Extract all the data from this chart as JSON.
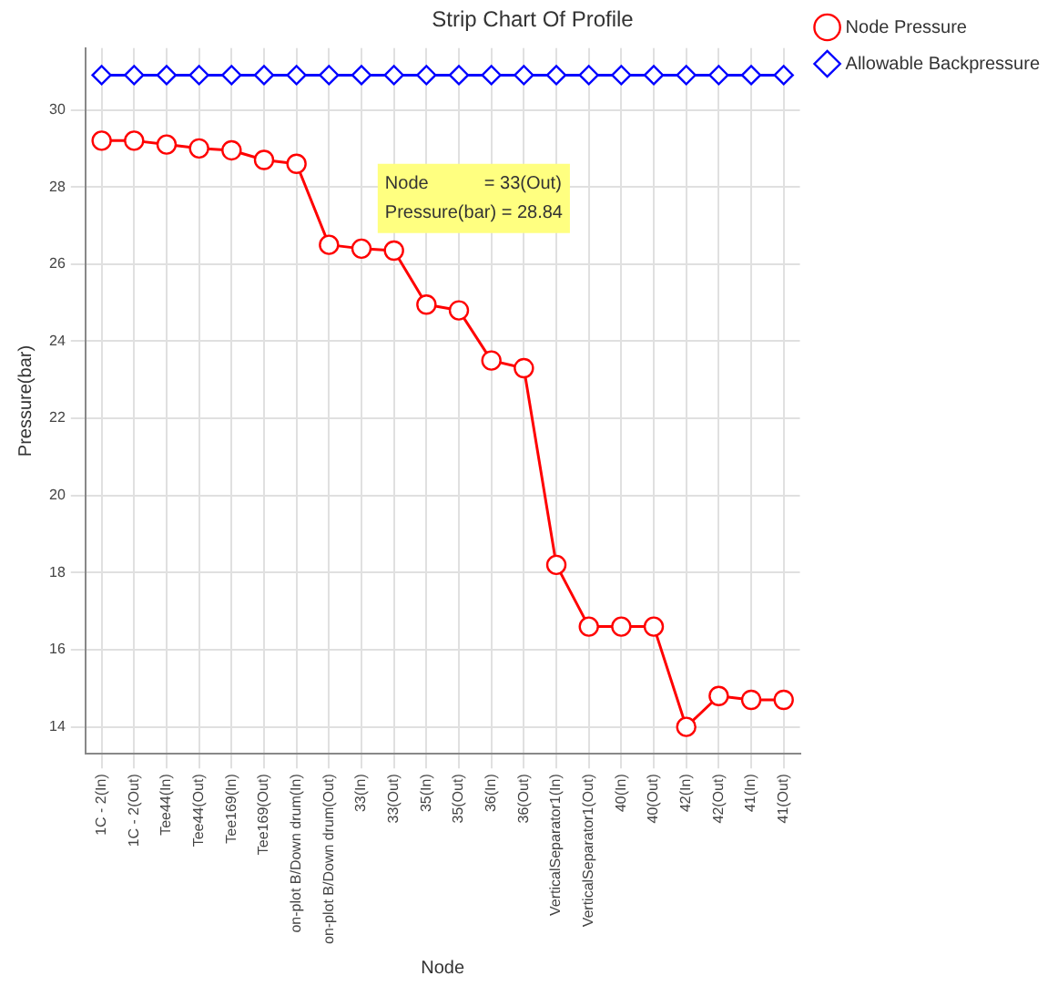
{
  "chart_data": {
    "type": "line",
    "title": "Strip Chart Of Profile",
    "xlabel": "Node",
    "ylabel": "Pressure(bar)",
    "categories": [
      "1C - 2(In)",
      "1C - 2(Out)",
      "Tee44(In)",
      "Tee44(Out)",
      "Tee169(In)",
      "Tee169(Out)",
      "on-plot B/Down drum(In)",
      "on-plot B/Down drum(Out)",
      "33(In)",
      "33(Out)",
      "35(In)",
      "35(Out)",
      "36(In)",
      "36(Out)",
      "VerticalSeparator1(In)",
      "VerticalSeparator1(Out)",
      "40(In)",
      "40(Out)",
      "42(In)",
      "42(Out)",
      "41(In)",
      "41(Out)"
    ],
    "series": [
      {
        "name": "Node Pressure",
        "color": "#ff0000",
        "marker": "circle",
        "values": [
          29.2,
          29.2,
          29.1,
          29.0,
          28.95,
          28.7,
          28.6,
          26.5,
          26.4,
          26.35,
          24.95,
          24.8,
          23.5,
          23.3,
          18.2,
          16.6,
          16.6,
          16.6,
          14.0,
          14.8,
          14.7,
          14.7
        ]
      },
      {
        "name": "Allowable Backpressure",
        "color": "#0000ff",
        "marker": "diamond",
        "values": [
          30.9,
          30.9,
          30.9,
          30.9,
          30.9,
          30.9,
          30.9,
          30.9,
          30.9,
          30.9,
          30.9,
          30.9,
          30.9,
          30.9,
          30.9,
          30.9,
          30.9,
          30.9,
          30.9,
          30.9,
          30.9,
          30.9
        ]
      }
    ],
    "ylim": [
      13.3,
      31.6
    ],
    "yticks": [
      14,
      16,
      18,
      20,
      22,
      24,
      26,
      28,
      30
    ],
    "grid": true,
    "legend": "top right",
    "line_style": "solid",
    "annotations": [
      "Node           = 33(Out)",
      "Pressure(bar) = 28.84"
    ]
  }
}
